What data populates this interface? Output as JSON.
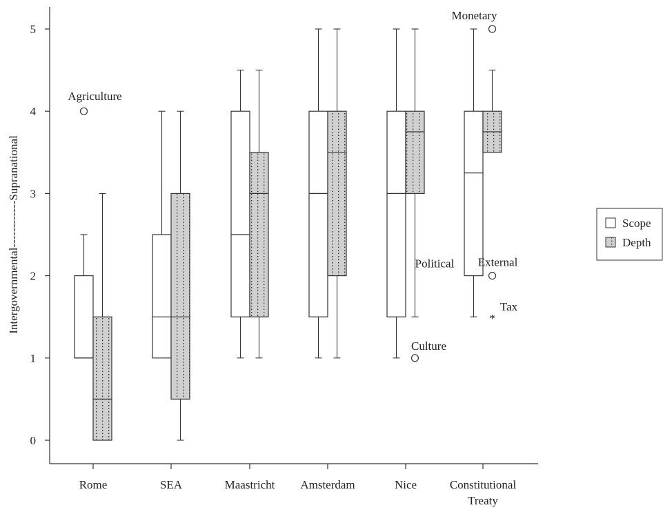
{
  "chart_data": {
    "type": "boxplot",
    "categories": [
      "Rome",
      "SEA",
      "Maastricht",
      "Amsterdam",
      "Nice",
      "Constitutional Treaty"
    ],
    "ylabel": "Intergovernmental------------Supranational",
    "ylim": [
      0,
      5
    ],
    "yticks": [
      0,
      1,
      2,
      3,
      4,
      5
    ],
    "grid": false,
    "legend_placement": "right",
    "series": [
      {
        "name": "Scope",
        "fill": "#ffffff",
        "pattern": "none",
        "boxes": [
          {
            "whisker_low": 1.0,
            "q1": 1.0,
            "median": 1.0,
            "q3": 2.0,
            "whisker_high": 2.5
          },
          {
            "whisker_low": 1.0,
            "q1": 1.0,
            "median": 1.5,
            "q3": 2.5,
            "whisker_high": 4.0
          },
          {
            "whisker_low": 1.0,
            "q1": 1.5,
            "median": 2.5,
            "q3": 4.0,
            "whisker_high": 4.5
          },
          {
            "whisker_low": 1.0,
            "q1": 1.5,
            "median": 3.0,
            "q3": 4.0,
            "whisker_high": 5.0
          },
          {
            "whisker_low": 1.0,
            "q1": 1.5,
            "median": 3.0,
            "q3": 4.0,
            "whisker_high": 5.0
          },
          {
            "whisker_low": 1.5,
            "q1": 2.0,
            "median": 3.25,
            "q3": 4.0,
            "whisker_high": 5.0
          }
        ]
      },
      {
        "name": "Depth",
        "fill": "#d0d0d0",
        "pattern": "dots",
        "boxes": [
          {
            "whisker_low": 0.0,
            "q1": 0.0,
            "median": 0.5,
            "q3": 1.5,
            "whisker_high": 3.0
          },
          {
            "whisker_low": 0.0,
            "q1": 0.5,
            "median": 1.5,
            "q3": 3.0,
            "whisker_high": 4.0
          },
          {
            "whisker_low": 1.0,
            "q1": 1.5,
            "median": 3.0,
            "q3": 3.5,
            "whisker_high": 4.5
          },
          {
            "whisker_low": 1.0,
            "q1": 2.0,
            "median": 3.5,
            "q3": 4.0,
            "whisker_high": 5.0
          },
          {
            "whisker_low": 1.5,
            "q1": 3.0,
            "median": 3.75,
            "q3": 4.0,
            "whisker_high": 5.0
          },
          {
            "whisker_low": 3.5,
            "q1": 3.5,
            "median": 3.75,
            "q3": 4.0,
            "whisker_high": 4.5
          }
        ]
      }
    ],
    "outliers": [
      {
        "category": "Rome",
        "series": "Scope",
        "y": 4.0,
        "label": "Agriculture",
        "marker": "circle"
      },
      {
        "category": "Nice",
        "series": "Depth",
        "y": 1.0,
        "label": "Culture",
        "marker": "circle"
      },
      {
        "category": "Constitutional Treaty",
        "series": "Depth",
        "y": 5.0,
        "label": "Monetary",
        "marker": "circle"
      },
      {
        "category": "Constitutional Treaty",
        "series": "Depth",
        "y": 2.0,
        "label": "External",
        "marker": "circle"
      },
      {
        "category": "Constitutional Treaty",
        "series": "Depth",
        "y": 1.5,
        "label": "Tax",
        "marker": "star"
      }
    ],
    "annotations": [
      {
        "text": "Political",
        "category": "Nice",
        "y": 2.15
      }
    ]
  }
}
